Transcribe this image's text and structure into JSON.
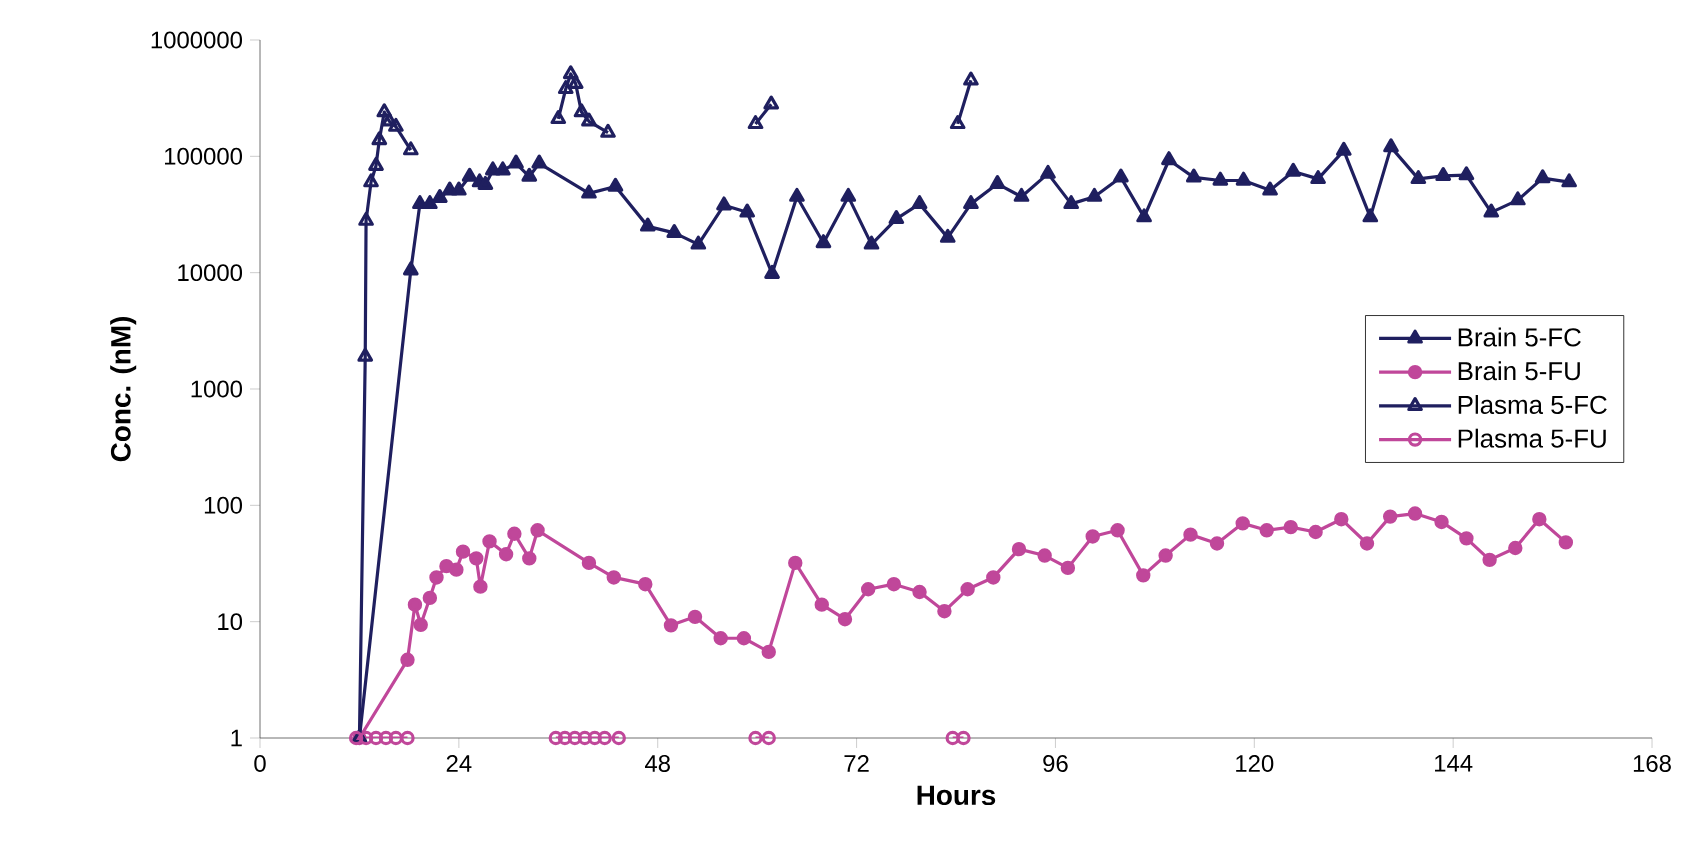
{
  "chart_data": {
    "type": "line",
    "xlabel": "Hours",
    "ylabel": "Conc. (nM)",
    "log": "y",
    "xlim": [
      0,
      168
    ],
    "xticks": [
      0,
      24,
      48,
      72,
      96,
      120,
      144,
      168
    ],
    "ylim": [
      1,
      1000000
    ],
    "yticks": [
      1,
      10,
      100,
      1000,
      10000,
      100000,
      1000000
    ],
    "legend": "right",
    "grid": false,
    "series": [
      {
        "name": "Brain 5-FC",
        "color": "#1f1f5f",
        "marker": "triangle",
        "x": [
          12,
          18.2,
          19.3,
          20.5,
          21.7,
          22.9,
          24,
          25.3,
          26.5,
          27.2,
          28.1,
          29.3,
          30.9,
          32.5,
          33.7,
          39.7,
          42.9,
          46.8,
          50,
          52.9,
          56,
          58.8,
          61.8,
          64.8,
          68,
          71,
          73.8,
          76.8,
          79.6,
          83,
          85.8,
          89,
          91.9,
          95.1,
          97.9,
          100.7,
          103.9,
          106.7,
          109.7,
          112.7,
          115.9,
          118.7,
          121.9,
          124.7,
          127.7,
          130.8,
          134,
          136.5,
          139.8,
          142.8,
          145.6,
          148.6,
          151.8,
          154.8,
          158
        ],
        "values": [
          1,
          10500,
          39000,
          39000,
          44000,
          51000,
          51000,
          67000,
          60000,
          57000,
          76000,
          76000,
          87000,
          67000,
          87000,
          48000,
          55000,
          25000,
          22000,
          17500,
          38000,
          33000,
          9800,
          45000,
          18000,
          45000,
          17500,
          29000,
          39000,
          20000,
          39000,
          58000,
          45000,
          71000,
          39000,
          45000,
          66000,
          30000,
          93000,
          66000,
          62000,
          62000,
          51000,
          74000,
          64000,
          112000,
          30000,
          120000,
          64000,
          68000,
          69000,
          33000,
          42000,
          65000,
          60000
        ]
      },
      {
        "name": "Brain 5-FU",
        "color": "#c0479a",
        "marker": "circle",
        "x": [
          12,
          17.8,
          18.7,
          19.4,
          20.5,
          21.3,
          22.5,
          23.7,
          24.5,
          26.1,
          26.6,
          27.7,
          29.7,
          30.7,
          32.5,
          33.5,
          39.7,
          42.7,
          46.5,
          49.6,
          52.5,
          55.6,
          58.4,
          61.4,
          64.6,
          67.8,
          70.6,
          73.4,
          76.5,
          79.6,
          82.6,
          85.4,
          88.5,
          91.6,
          94.7,
          97.5,
          100.5,
          103.5,
          106.6,
          109.3,
          112.3,
          115.5,
          118.6,
          121.5,
          124.4,
          127.4,
          130.5,
          133.6,
          136.4,
          139.4,
          142.6,
          145.6,
          148.4,
          151.5,
          154.4,
          157.6
        ],
        "values": [
          1,
          4.7,
          14,
          9.4,
          16,
          24,
          30,
          28,
          40,
          35,
          20,
          49,
          38,
          57,
          35,
          61,
          32,
          24,
          21,
          9.3,
          11,
          7.2,
          7.2,
          5.5,
          32,
          14,
          10.5,
          19,
          21,
          18,
          12.3,
          19,
          24,
          42,
          37,
          29,
          54,
          61,
          25,
          37,
          56,
          47,
          70,
          61,
          65,
          59,
          76,
          47,
          80,
          85,
          72,
          52,
          34,
          43,
          76,
          48
        ]
      },
      {
        "name": "Plasma 5-FC",
        "color": "#1f1f5f",
        "marker": "triangle",
        "x": [
          12,
          12.7,
          12.8,
          13.4,
          14,
          14.4,
          15,
          15.6,
          16.4,
          18.2,
          27,
          36,
          36.9,
          37.5,
          38.1,
          38.8,
          39.7,
          42,
          51,
          59.8,
          61.7,
          73,
          84.2,
          85.8
        ],
        "values": [
          1,
          1900,
          28000,
          60000,
          83000,
          138000,
          240000,
          200000,
          180000,
          113000,
          null,
          210000,
          380000,
          510000,
          420000,
          240000,
          200000,
          160000,
          null,
          190000,
          280000,
          null,
          190000,
          450000
        ]
      },
      {
        "name": "Plasma 5-FU",
        "color": "#c0479a",
        "marker": "circle",
        "x": [
          11.6,
          12.8,
          14,
          15.2,
          16.4,
          17.8,
          27,
          35.7,
          36.8,
          38,
          39.2,
          40.4,
          41.6,
          43.3,
          51,
          59.8,
          61.4,
          73,
          83.6,
          84.9
        ],
        "values": [
          1,
          1,
          1,
          1,
          1,
          1,
          null,
          1,
          1,
          1,
          1,
          1,
          1,
          1,
          null,
          1,
          1,
          null,
          1,
          1
        ]
      }
    ]
  }
}
